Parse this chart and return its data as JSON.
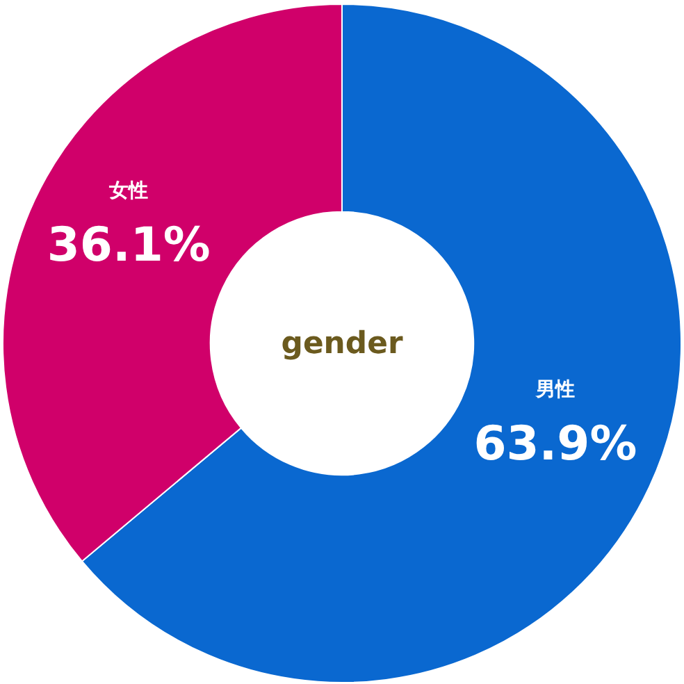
{
  "chart_data": {
    "type": "donut",
    "title": "gender",
    "categories": [
      "男性",
      "女性"
    ],
    "values": [
      63.9,
      36.1
    ],
    "colors": [
      "#0a68d0",
      "#d0006a"
    ],
    "value_labels": [
      "63.9%",
      "36.1%"
    ]
  }
}
